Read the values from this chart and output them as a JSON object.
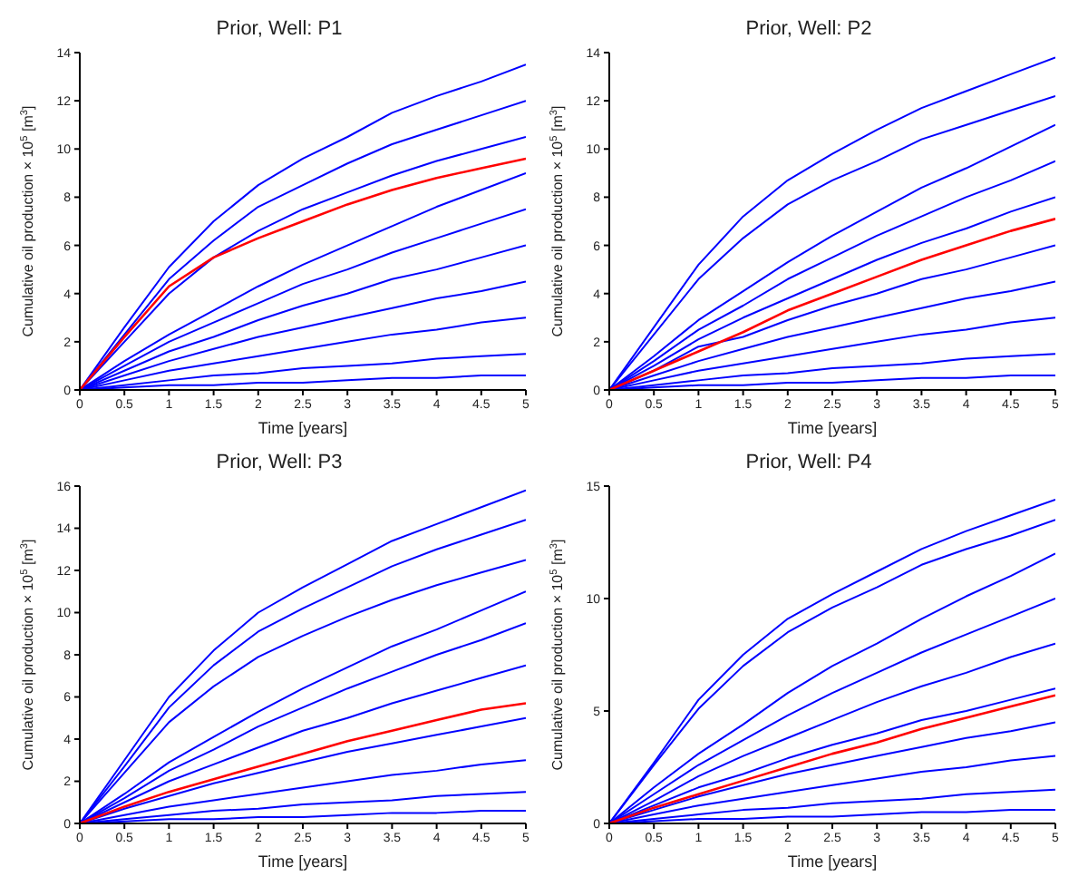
{
  "chart_data": [
    {
      "type": "line",
      "title": "Prior, Well: P1",
      "xlabel": "Time [years]",
      "ylabel": "Cumulative oil production × 10$^{5}$ [m$^{3}$]",
      "x": [
        0,
        0.5,
        1,
        1.5,
        2,
        2.5,
        3,
        3.5,
        4,
        4.5,
        5
      ],
      "xlim": [
        0,
        5
      ],
      "xticks": [
        0,
        0.5,
        1,
        1.5,
        2,
        2.5,
        3,
        3.5,
        4,
        4.5,
        5
      ],
      "ylim": [
        0,
        14
      ],
      "yticks": [
        0,
        2,
        4,
        6,
        8,
        10,
        12,
        14
      ],
      "series": [
        {
          "color": "#0000ff",
          "values": [
            0,
            2.6,
            5.1,
            7.0,
            8.5,
            9.6,
            10.5,
            11.5,
            12.2,
            12.8,
            13.5
          ]
        },
        {
          "color": "#0000ff",
          "values": [
            0,
            2.3,
            4.6,
            6.2,
            7.6,
            8.5,
            9.4,
            10.2,
            10.8,
            11.4,
            12
          ]
        },
        {
          "color": "#0000ff",
          "values": [
            0,
            2.0,
            4.0,
            5.5,
            6.6,
            7.5,
            8.2,
            8.9,
            9.5,
            10.0,
            10.5
          ]
        },
        {
          "color": "#0000ff",
          "values": [
            0,
            1.2,
            2.3,
            3.3,
            4.3,
            5.2,
            6.0,
            6.8,
            7.6,
            8.3,
            9
          ]
        },
        {
          "color": "#0000ff",
          "values": [
            0,
            1.0,
            2.0,
            2.8,
            3.6,
            4.4,
            5.0,
            5.7,
            6.3,
            6.9,
            7.5
          ]
        },
        {
          "color": "#0000ff",
          "values": [
            0,
            0.8,
            1.6,
            2.2,
            2.9,
            3.5,
            4.0,
            4.6,
            5.0,
            5.5,
            6
          ]
        },
        {
          "color": "#0000ff",
          "values": [
            0,
            0.6,
            1.2,
            1.7,
            2.2,
            2.6,
            3.0,
            3.4,
            3.8,
            4.1,
            4.5
          ]
        },
        {
          "color": "#0000ff",
          "values": [
            0,
            0.4,
            0.8,
            1.1,
            1.4,
            1.7,
            2.0,
            2.3,
            2.5,
            2.8,
            3
          ]
        },
        {
          "color": "#0000ff",
          "values": [
            0,
            0.2,
            0.4,
            0.6,
            0.7,
            0.9,
            1.0,
            1.1,
            1.3,
            1.4,
            1.5
          ]
        },
        {
          "color": "#0000ff",
          "values": [
            0,
            0.1,
            0.2,
            0.2,
            0.3,
            0.3,
            0.4,
            0.5,
            0.5,
            0.6,
            0.6
          ]
        },
        {
          "color": "#ff0000",
          "values": [
            0,
            2.2,
            4.3,
            5.5,
            6.3,
            7.0,
            7.7,
            8.3,
            8.8,
            9.2,
            9.6
          ]
        }
      ]
    },
    {
      "type": "line",
      "title": "Prior, Well: P2",
      "xlabel": "Time [years]",
      "ylabel": "Cumulative oil production × 10$^{5}$ [m$^{3}$]",
      "x": [
        0,
        0.5,
        1,
        1.5,
        2,
        2.5,
        3,
        3.5,
        4,
        4.5,
        5
      ],
      "xlim": [
        0,
        5
      ],
      "xticks": [
        0,
        0.5,
        1,
        1.5,
        2,
        2.5,
        3,
        3.5,
        4,
        4.5,
        5
      ],
      "ylim": [
        0,
        14
      ],
      "yticks": [
        0,
        2,
        4,
        6,
        8,
        10,
        12,
        14
      ],
      "series": [
        {
          "color": "#0000ff",
          "values": [
            0,
            2.6,
            5.2,
            7.2,
            8.7,
            9.8,
            10.8,
            11.7,
            12.4,
            13.1,
            13.8
          ]
        },
        {
          "color": "#0000ff",
          "values": [
            0,
            2.3,
            4.6,
            6.3,
            7.7,
            8.7,
            9.5,
            10.4,
            11.0,
            11.6,
            12.2
          ]
        },
        {
          "color": "#0000ff",
          "values": [
            0,
            1.4,
            2.9,
            4.1,
            5.3,
            6.4,
            7.4,
            8.4,
            9.2,
            10.1,
            11
          ]
        },
        {
          "color": "#0000ff",
          "values": [
            0,
            1.2,
            2.5,
            3.5,
            4.6,
            5.5,
            6.4,
            7.2,
            8.0,
            8.7,
            9.5
          ]
        },
        {
          "color": "#0000ff",
          "values": [
            0,
            1.0,
            2.1,
            3.0,
            3.8,
            4.6,
            5.4,
            6.1,
            6.7,
            7.4,
            8
          ]
        },
        {
          "color": "#0000ff",
          "values": [
            0,
            0.8,
            1.8,
            2.2,
            2.9,
            3.5,
            4.0,
            4.6,
            5.0,
            5.5,
            6
          ]
        },
        {
          "color": "#0000ff",
          "values": [
            0,
            0.6,
            1.2,
            1.7,
            2.2,
            2.6,
            3.0,
            3.4,
            3.8,
            4.1,
            4.5
          ]
        },
        {
          "color": "#0000ff",
          "values": [
            0,
            0.4,
            0.8,
            1.1,
            1.4,
            1.7,
            2.0,
            2.3,
            2.5,
            2.8,
            3
          ]
        },
        {
          "color": "#0000ff",
          "values": [
            0,
            0.2,
            0.4,
            0.6,
            0.7,
            0.9,
            1.0,
            1.1,
            1.3,
            1.4,
            1.5
          ]
        },
        {
          "color": "#0000ff",
          "values": [
            0,
            0.1,
            0.2,
            0.2,
            0.3,
            0.3,
            0.4,
            0.5,
            0.5,
            0.6,
            0.6
          ]
        },
        {
          "color": "#ff0000",
          "values": [
            0,
            0.8,
            1.6,
            2.4,
            3.3,
            4.0,
            4.7,
            5.4,
            6.0,
            6.6,
            7.1
          ]
        }
      ]
    },
    {
      "type": "line",
      "title": "Prior, Well: P3",
      "xlabel": "Time [years]",
      "ylabel": "Cumulative oil production × 10$^{5}$ [m$^{3}$]",
      "x": [
        0,
        0.5,
        1,
        1.5,
        2,
        2.5,
        3,
        3.5,
        4,
        4.5,
        5
      ],
      "xlim": [
        0,
        5
      ],
      "xticks": [
        0,
        0.5,
        1,
        1.5,
        2,
        2.5,
        3,
        3.5,
        4,
        4.5,
        5
      ],
      "ylim": [
        0,
        16
      ],
      "yticks": [
        0,
        2,
        4,
        6,
        8,
        10,
        12,
        14,
        16
      ],
      "series": [
        {
          "color": "#0000ff",
          "values": [
            0,
            3.0,
            6.0,
            8.2,
            10.0,
            11.2,
            12.3,
            13.4,
            14.2,
            15.0,
            15.8
          ]
        },
        {
          "color": "#0000ff",
          "values": [
            0,
            2.7,
            5.5,
            7.5,
            9.1,
            10.2,
            11.2,
            12.2,
            13.0,
            13.7,
            14.4
          ]
        },
        {
          "color": "#0000ff",
          "values": [
            0,
            2.4,
            4.8,
            6.5,
            7.9,
            8.9,
            9.8,
            10.6,
            11.3,
            11.9,
            12.5
          ]
        },
        {
          "color": "#0000ff",
          "values": [
            0,
            1.4,
            2.9,
            4.1,
            5.3,
            6.4,
            7.4,
            8.4,
            9.2,
            10.1,
            11
          ]
        },
        {
          "color": "#0000ff",
          "values": [
            0,
            1.2,
            2.5,
            3.5,
            4.6,
            5.5,
            6.4,
            7.2,
            8.0,
            8.7,
            9.5
          ]
        },
        {
          "color": "#0000ff",
          "values": [
            0,
            1.0,
            2.0,
            2.8,
            3.6,
            4.4,
            5.0,
            5.7,
            6.3,
            6.9,
            7.5
          ]
        },
        {
          "color": "#0000ff",
          "values": [
            0,
            0.7,
            1.3,
            1.9,
            2.4,
            2.9,
            3.4,
            3.8,
            4.2,
            4.6,
            5
          ]
        },
        {
          "color": "#0000ff",
          "values": [
            0,
            0.4,
            0.8,
            1.1,
            1.4,
            1.7,
            2.0,
            2.3,
            2.5,
            2.8,
            3
          ]
        },
        {
          "color": "#0000ff",
          "values": [
            0,
            0.2,
            0.4,
            0.6,
            0.7,
            0.9,
            1.0,
            1.1,
            1.3,
            1.4,
            1.5
          ]
        },
        {
          "color": "#0000ff",
          "values": [
            0,
            0.1,
            0.2,
            0.2,
            0.3,
            0.3,
            0.4,
            0.5,
            0.5,
            0.6,
            0.6
          ]
        },
        {
          "color": "#ff0000",
          "values": [
            0,
            0.8,
            1.5,
            2.1,
            2.7,
            3.3,
            3.9,
            4.4,
            4.9,
            5.4,
            5.7
          ]
        }
      ]
    },
    {
      "type": "line",
      "title": "Prior, Well: P4",
      "xlabel": "Time [years]",
      "ylabel": "Cumulative oil production × 10$^{5}$ [m$^{3}$]",
      "x": [
        0,
        0.5,
        1,
        1.5,
        2,
        2.5,
        3,
        3.5,
        4,
        4.5,
        5
      ],
      "xlim": [
        0,
        5
      ],
      "xticks": [
        0,
        0.5,
        1,
        1.5,
        2,
        2.5,
        3,
        3.5,
        4,
        4.5,
        5
      ],
      "ylim": [
        0,
        15
      ],
      "yticks": [
        0,
        5,
        10,
        15
      ],
      "series": [
        {
          "color": "#0000ff",
          "values": [
            0,
            2.7,
            5.5,
            7.5,
            9.1,
            10.2,
            11.2,
            12.2,
            13.0,
            13.7,
            14.4
          ]
        },
        {
          "color": "#0000ff",
          "values": [
            0,
            2.6,
            5.1,
            7.0,
            8.5,
            9.6,
            10.5,
            11.5,
            12.2,
            12.8,
            13.5
          ]
        },
        {
          "color": "#0000ff",
          "values": [
            0,
            1.6,
            3.1,
            4.4,
            5.8,
            7.0,
            8.0,
            9.1,
            10.1,
            11.0,
            12
          ]
        },
        {
          "color": "#0000ff",
          "values": [
            0,
            1.3,
            2.6,
            3.7,
            4.8,
            5.8,
            6.7,
            7.6,
            8.4,
            9.2,
            10
          ]
        },
        {
          "color": "#0000ff",
          "values": [
            0,
            1.0,
            2.1,
            3.0,
            3.8,
            4.6,
            5.4,
            6.1,
            6.7,
            7.4,
            8
          ]
        },
        {
          "color": "#0000ff",
          "values": [
            0,
            0.8,
            1.6,
            2.2,
            2.9,
            3.5,
            4.0,
            4.6,
            5.0,
            5.5,
            6
          ]
        },
        {
          "color": "#0000ff",
          "values": [
            0,
            0.6,
            1.2,
            1.7,
            2.2,
            2.6,
            3.0,
            3.4,
            3.8,
            4.1,
            4.5
          ]
        },
        {
          "color": "#0000ff",
          "values": [
            0,
            0.4,
            0.8,
            1.1,
            1.4,
            1.7,
            2.0,
            2.3,
            2.5,
            2.8,
            3
          ]
        },
        {
          "color": "#0000ff",
          "values": [
            0,
            0.2,
            0.4,
            0.6,
            0.7,
            0.9,
            1.0,
            1.1,
            1.3,
            1.4,
            1.5
          ]
        },
        {
          "color": "#0000ff",
          "values": [
            0,
            0.1,
            0.2,
            0.2,
            0.3,
            0.3,
            0.4,
            0.5,
            0.5,
            0.6,
            0.6
          ]
        },
        {
          "color": "#ff0000",
          "values": [
            0,
            0.7,
            1.3,
            1.9,
            2.5,
            3.1,
            3.6,
            4.2,
            4.7,
            5.2,
            5.7
          ]
        }
      ]
    }
  ]
}
